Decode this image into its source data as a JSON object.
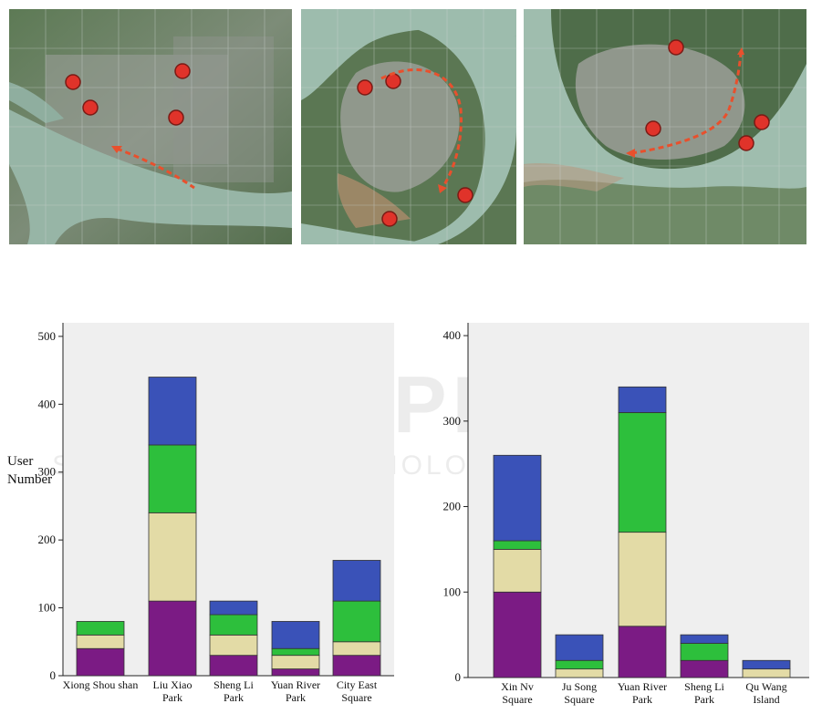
{
  "y_label_line1": "User",
  "y_label_line2": "Number",
  "maps": [
    {
      "name": "map-1"
    },
    {
      "name": "map-2"
    },
    {
      "name": "map-3"
    }
  ],
  "colors": {
    "purple": "#7B1B84",
    "beige": "#E3DBA6",
    "green": "#2DBF3C",
    "blue": "#3A52B8",
    "plot_bg": "#EFEFEF",
    "marker": "#E0332A",
    "arrow": "#E8502D"
  },
  "chart_data": [
    {
      "type": "bar",
      "stacked": true,
      "ylabel": "User Number",
      "ylim": [
        0,
        520
      ],
      "yticks": [
        0,
        100,
        200,
        300,
        400,
        500
      ],
      "categories": [
        [
          "Xiong Shou shan"
        ],
        [
          "Liu Xiao",
          "Park"
        ],
        [
          "Sheng Li",
          "Park"
        ],
        [
          "Yuan River",
          "Park"
        ],
        [
          "City East",
          "Square"
        ]
      ],
      "series": [
        {
          "color": "#7B1B84",
          "values": [
            40,
            110,
            30,
            10,
            30
          ]
        },
        {
          "color": "#E3DBA6",
          "values": [
            20,
            130,
            30,
            20,
            20
          ]
        },
        {
          "color": "#2DBF3C",
          "values": [
            20,
            100,
            30,
            10,
            60
          ]
        },
        {
          "color": "#3A52B8",
          "values": [
            0,
            100,
            20,
            40,
            60
          ]
        }
      ]
    },
    {
      "type": "bar",
      "stacked": true,
      "ylim": [
        0,
        415
      ],
      "yticks": [
        0,
        100,
        200,
        300,
        400
      ],
      "categories": [
        [
          "Xin Nv",
          "Square"
        ],
        [
          "Ju Song",
          "Square"
        ],
        [
          "Yuan River",
          "Park"
        ],
        [
          "Sheng Li",
          "Park"
        ],
        [
          "Qu Wang",
          "Island"
        ]
      ],
      "series": [
        {
          "color": "#7B1B84",
          "values": [
            100,
            0,
            60,
            20,
            0
          ]
        },
        {
          "color": "#E3DBA6",
          "values": [
            50,
            10,
            110,
            0,
            10
          ]
        },
        {
          "color": "#2DBF3C",
          "values": [
            10,
            10,
            140,
            20,
            0
          ]
        },
        {
          "color": "#3A52B8",
          "values": [
            100,
            30,
            30,
            10,
            10
          ]
        }
      ]
    }
  ]
}
